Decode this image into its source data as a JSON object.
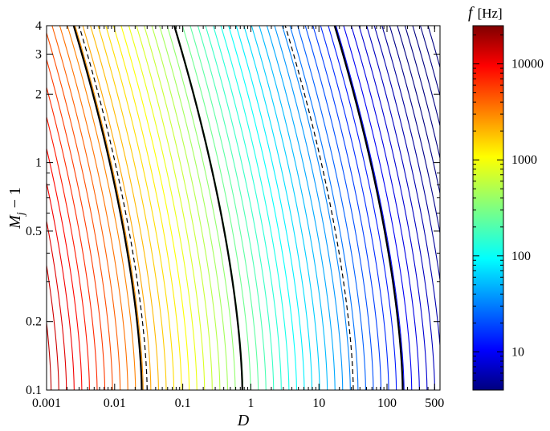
{
  "chart_data": {
    "type": "contour",
    "xlabel": "D",
    "ylabel": "M_j − 1",
    "xscale": "log",
    "yscale": "log",
    "xlim": [
      0.001,
      600
    ],
    "ylim": [
      0.1,
      4
    ],
    "xticks": [
      {
        "value": 0.001,
        "label": "0.001"
      },
      {
        "value": 0.01,
        "label": "0.01"
      },
      {
        "value": 0.1,
        "label": "0.1"
      },
      {
        "value": 1,
        "label": "1"
      },
      {
        "value": 10,
        "label": "10"
      },
      {
        "value": 100,
        "label": "100"
      },
      {
        "value": 500,
        "label": "500"
      }
    ],
    "yticks": [
      {
        "value": 0.1,
        "label": "0.1"
      },
      {
        "value": 0.2,
        "label": "0.2"
      },
      {
        "value": 0.5,
        "label": "0.5"
      },
      {
        "value": 1,
        "label": "1"
      },
      {
        "value": 2,
        "label": "2"
      },
      {
        "value": 3,
        "label": "3"
      },
      {
        "value": 4,
        "label": "4"
      }
    ],
    "contours": {
      "count": 60,
      "color_scale": "jet",
      "black_solid_D_at_bottom": [
        0.025,
        0.75,
        170
      ],
      "black_dashed_D_at_bottom": [
        0.03,
        32
      ],
      "shape": "contour D at M_j-1=0.1 shifts to D/10 at M_j-1=4"
    },
    "colorbar": {
      "title_symbol": "f",
      "title_unit": "[Hz]",
      "scale": "log",
      "range": [
        4,
        25000
      ],
      "ticks": [
        {
          "value": 10,
          "label": "10"
        },
        {
          "value": 100,
          "label": "100"
        },
        {
          "value": 1000,
          "label": "1000"
        },
        {
          "value": 10000,
          "label": "10000"
        }
      ]
    }
  }
}
